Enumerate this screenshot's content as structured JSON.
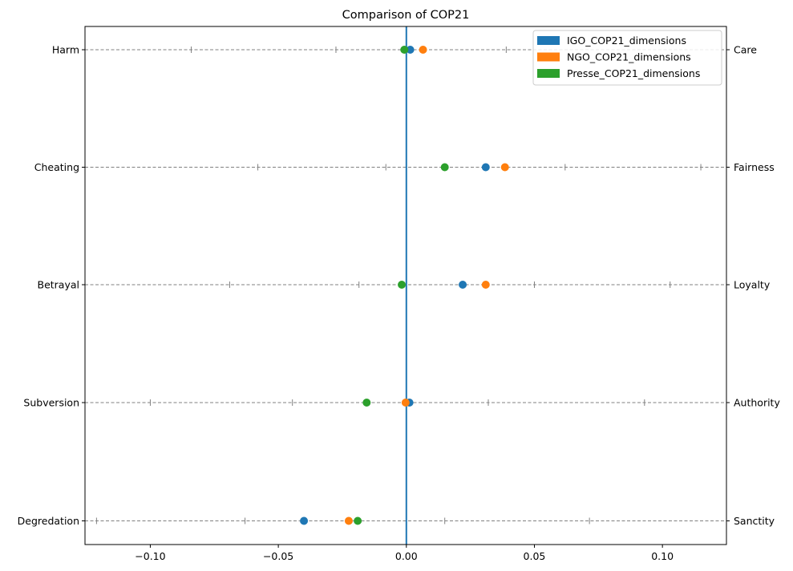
{
  "chart_data": {
    "type": "scatter",
    "title": "Comparison of COP21",
    "xlabel": "",
    "ylabel": "",
    "xlim": [
      -0.1255,
      0.125
    ],
    "xticks": [
      -0.1,
      -0.05,
      0.0,
      0.05,
      0.1
    ],
    "xtick_labels": [
      "−0.10",
      "−0.05",
      "0.00",
      "0.05",
      "0.10"
    ],
    "left_labels": [
      "Harm",
      "Cheating",
      "Betrayal",
      "Subversion",
      "Degredation"
    ],
    "right_labels": [
      "Care",
      "Fairness",
      "Loyalty",
      "Authority",
      "Sanctity"
    ],
    "vertical_line_x": 0.0,
    "vertical_line_color": "#1f77b4",
    "grid": "horizontal dashed lines at each dimension",
    "legend_position": "top-right",
    "series": [
      {
        "name": "IGO_COP21_dimensions",
        "color": "#1f77b4",
        "values": [
          0.0015,
          0.031,
          0.022,
          0.0012,
          -0.04
        ]
      },
      {
        "name": "NGO_COP21_dimensions",
        "color": "#ff7f0e",
        "values": [
          0.0065,
          0.0385,
          0.031,
          -0.0003,
          -0.0225
        ]
      },
      {
        "name": "Presse_COP21_dimensions",
        "color": "#2ca02c",
        "values": [
          -0.0008,
          0.015,
          -0.0018,
          -0.0155,
          -0.019
        ]
      }
    ],
    "tick_marks": [
      [
        -0.084,
        -0.0275,
        0.039
      ],
      [
        -0.058,
        -0.008,
        0.062,
        0.115
      ],
      [
        -0.069,
        -0.0185,
        0.05,
        0.103
      ],
      [
        -0.1,
        -0.0445,
        0.032,
        0.093
      ],
      [
        -0.121,
        -0.063,
        0.015,
        0.0715
      ]
    ]
  }
}
